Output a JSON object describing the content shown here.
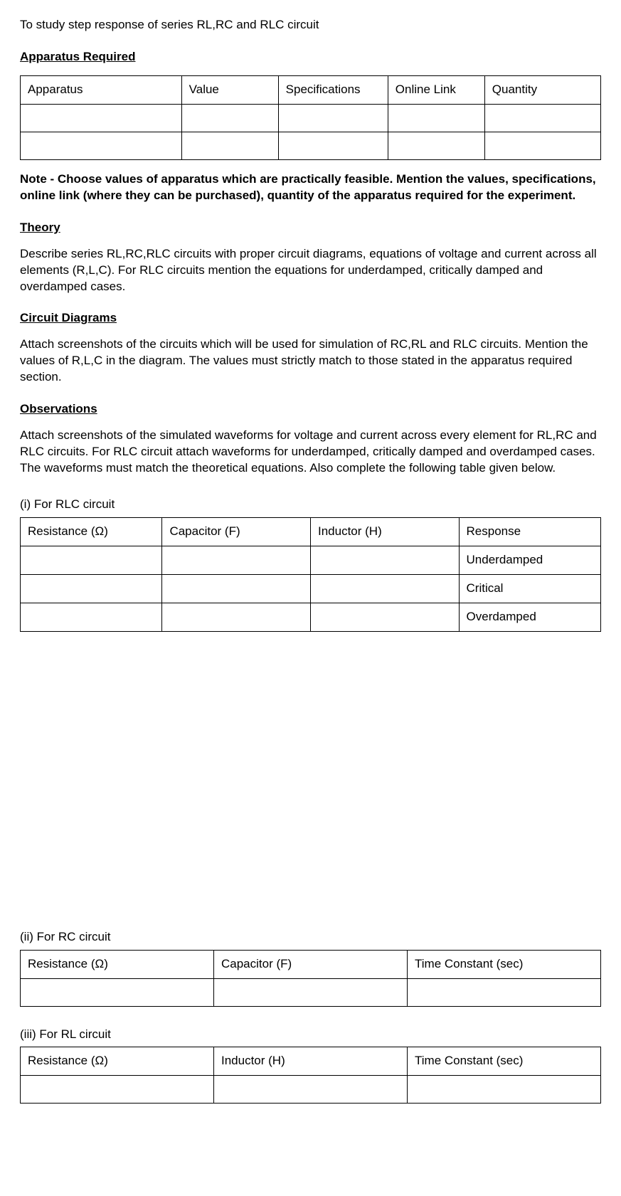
{
  "title": "To study step response of series RL,RC and RLC circuit",
  "headings": {
    "apparatus": "Apparatus Required",
    "theory": "Theory",
    "circuit": "Circuit Diagrams",
    "observations": "Observations"
  },
  "apparatus_table": {
    "columns": [
      "Apparatus",
      "Value",
      "Specifications",
      "Online Link",
      "Quantity"
    ],
    "rows": [
      [
        "",
        "",
        "",
        "",
        ""
      ],
      [
        "",
        "",
        "",
        "",
        ""
      ]
    ]
  },
  "note": "Note - Choose values of apparatus which are practically feasible. Mention the values, specifications, online link (where they can be purchased), quantity of the apparatus required for the experiment.",
  "theory_text": "Describe series RL,RC,RLC circuits with proper circuit diagrams, equations of voltage and current across all elements (R,L,C). For RLC circuits mention the equations for underdamped, critically damped and overdamped cases.",
  "circuit_text": "Attach screenshots of the circuits which will be used for simulation of RC,RL and RLC circuits. Mention the values of R,L,C in the diagram. The values must strictly match to those stated in the apparatus required section.",
  "observations_text": "Attach screenshots of the simulated waveforms for voltage and current across every element for RL,RC and RLC circuits. For RLC circuit attach waveforms for underdamped, critically damped and overdamped cases. The waveforms must match the theoretical equations. Also complete the following table given below.",
  "rlc": {
    "caption": "(i) For RLC circuit",
    "columns": [
      "Resistance (Ω)",
      "Capacitor (F)",
      "Inductor (H)",
      "Response"
    ],
    "rows": [
      [
        "",
        "",
        "",
        "Underdamped"
      ],
      [
        "",
        "",
        "",
        "Critical"
      ],
      [
        "",
        "",
        "",
        "Overdamped"
      ]
    ]
  },
  "rc": {
    "caption": "(ii) For RC circuit",
    "columns": [
      "Resistance (Ω)",
      "Capacitor (F)",
      "Time Constant (sec)"
    ],
    "rows": [
      [
        "",
        "",
        ""
      ]
    ]
  },
  "rl": {
    "caption": "(iii) For RL circuit",
    "columns": [
      "Resistance (Ω)",
      "Inductor (H)",
      "Time Constant (sec)"
    ],
    "rows": [
      [
        "",
        "",
        ""
      ]
    ]
  }
}
